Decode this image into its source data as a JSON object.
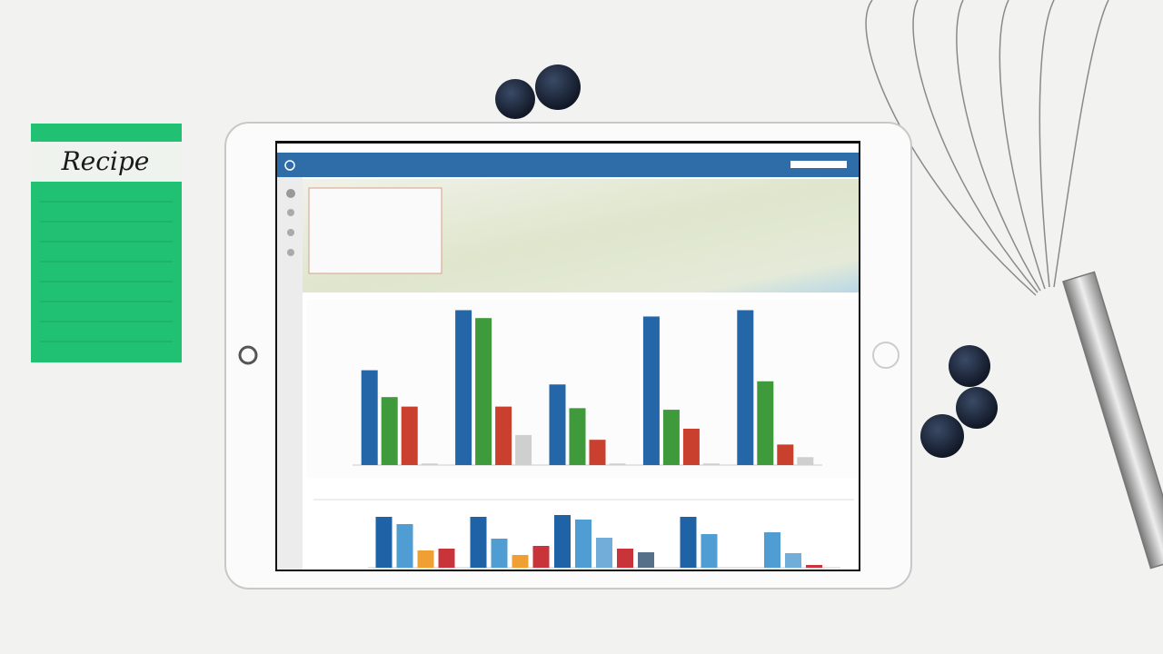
{
  "note": {
    "title": "Recipe"
  },
  "chart_data": [
    {
      "type": "bar",
      "categories": [
        null,
        null,
        null,
        null,
        null
      ],
      "ylim": [
        0,
        100
      ],
      "series": [
        {
          "color": "#2466a8",
          "values": [
            60,
            98,
            51,
            94,
            98
          ]
        },
        {
          "color": "#3e9a3a",
          "values": [
            43,
            93,
            36,
            35,
            53
          ]
        },
        {
          "color": "#c9402e",
          "values": [
            37,
            37,
            16,
            23,
            13
          ]
        },
        {
          "color": "#cfcfcf",
          "values": [
            1,
            19,
            1,
            1,
            5
          ]
        }
      ]
    },
    {
      "type": "bar",
      "categories": [
        null,
        null,
        null,
        null,
        null
      ],
      "ylim": [
        0,
        65
      ],
      "series": [
        {
          "color": "#1f63a6",
          "values": [
            56,
            56,
            58,
            56,
            null
          ]
        },
        {
          "color": "#4f9dd2",
          "values": [
            48,
            32,
            53,
            37,
            39
          ]
        },
        {
          "color": "#72acd8",
          "values": [
            null,
            null,
            33,
            null,
            16
          ]
        },
        {
          "color": "#f0a032",
          "values": [
            19,
            14,
            null,
            null,
            null
          ]
        },
        {
          "color": "#c8343a",
          "values": [
            21,
            24,
            21,
            null,
            3
          ]
        },
        {
          "color": "#56708a",
          "values": [
            null,
            null,
            17,
            null,
            null
          ]
        }
      ]
    }
  ]
}
